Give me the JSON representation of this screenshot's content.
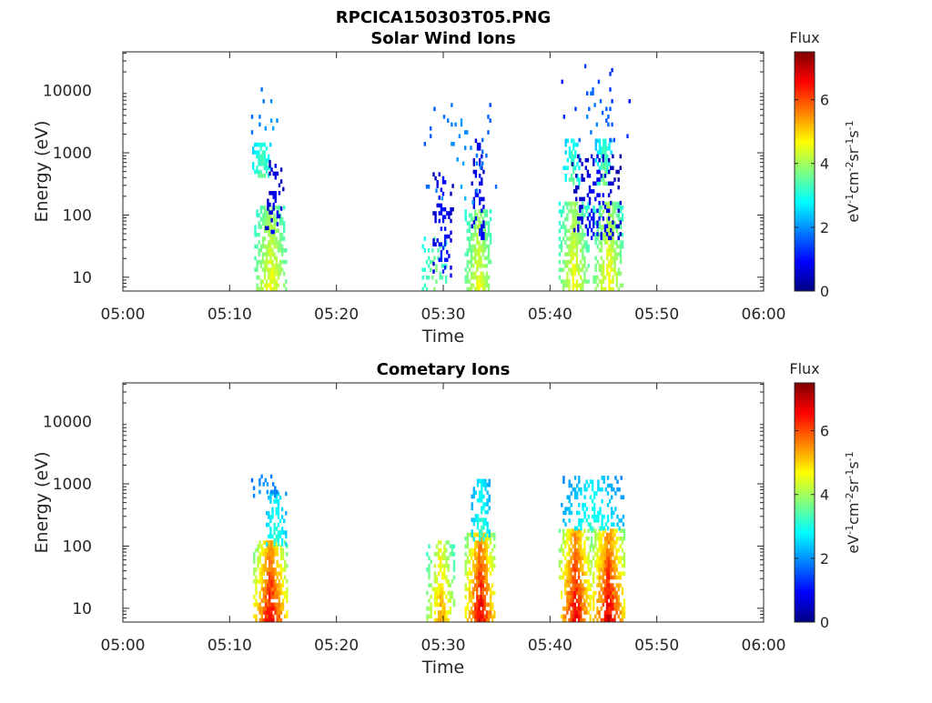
{
  "figure_title": "RPCICA150303T05.PNG",
  "colorbar": {
    "title": "Flux",
    "label_parts": [
      {
        "t": "eV",
        "sup": false
      },
      {
        "t": "-1",
        "sup": true
      },
      {
        "t": "cm",
        "sup": false
      },
      {
        "t": "-2",
        "sup": true
      },
      {
        "t": "sr",
        "sup": false
      },
      {
        "t": "-1",
        "sup": true
      },
      {
        "t": "s",
        "sup": false
      },
      {
        "t": "-1",
        "sup": true
      }
    ],
    "ticks": [
      "0",
      "2",
      "4",
      "6"
    ],
    "range": [
      0,
      7.5
    ],
    "colormap": "jet"
  },
  "chart_data": [
    {
      "type": "heatmap",
      "title": "Solar Wind Ions",
      "xlabel": "Time",
      "ylabel": "Energy (eV)",
      "x_ticks": [
        "05:00",
        "05:10",
        "05:20",
        "05:30",
        "05:40",
        "05:50",
        "06:00"
      ],
      "xlim_min": [
        0,
        60
      ],
      "y_scale": "log",
      "y_ticks": [
        "10",
        "100",
        "1000",
        "10000"
      ],
      "ylim": [
        6,
        42000
      ],
      "z_label": "Flux",
      "z_range": [
        0,
        7.5
      ],
      "clusters": [
        {
          "t0": 12.3,
          "t1": 15.3,
          "e_lo": 6,
          "e_hi": 130,
          "peak": 4.9,
          "min": 3.0,
          "density": 0.85
        },
        {
          "t0": 12.1,
          "t1": 13.8,
          "e_lo": 400,
          "e_hi": 1400,
          "peak": 3.8,
          "min": 2.4,
          "density": 0.85
        },
        {
          "t0": 13.3,
          "t1": 15.0,
          "e_lo": 50,
          "e_hi": 700,
          "peak": 1.2,
          "min": 0.2,
          "density": 0.35
        },
        {
          "t0": 12.0,
          "t1": 15.5,
          "e_lo": 1500,
          "e_hi": 15000,
          "peak": 2.3,
          "min": 1.5,
          "density": 0.05
        },
        {
          "t0": 28.0,
          "t1": 30.3,
          "e_lo": 6,
          "e_hi": 40,
          "peak": 4.0,
          "min": 2.8,
          "density": 0.25
        },
        {
          "t0": 29.0,
          "t1": 30.8,
          "e_lo": 10,
          "e_hi": 500,
          "peak": 1.5,
          "min": 0.3,
          "density": 0.3
        },
        {
          "t0": 32.0,
          "t1": 34.5,
          "e_lo": 6,
          "e_hi": 120,
          "peak": 4.8,
          "min": 3.0,
          "density": 0.75
        },
        {
          "t0": 32.6,
          "t1": 33.8,
          "e_lo": 40,
          "e_hi": 1500,
          "peak": 1.4,
          "min": 0.3,
          "density": 0.35
        },
        {
          "t0": 28.0,
          "t1": 35.0,
          "e_lo": 150,
          "e_hi": 6000,
          "peak": 2.4,
          "min": 1.4,
          "density": 0.05
        },
        {
          "t0": 40.8,
          "t1": 43.5,
          "e_lo": 6,
          "e_hi": 150,
          "peak": 4.9,
          "min": 3.0,
          "density": 0.75
        },
        {
          "t0": 44.0,
          "t1": 46.8,
          "e_lo": 6,
          "e_hi": 150,
          "peak": 5.0,
          "min": 3.0,
          "density": 0.8
        },
        {
          "t0": 41.2,
          "t1": 42.8,
          "e_lo": 300,
          "e_hi": 1500,
          "peak": 3.8,
          "min": 2.2,
          "density": 0.7
        },
        {
          "t0": 44.2,
          "t1": 45.8,
          "e_lo": 300,
          "e_hi": 1500,
          "peak": 4.0,
          "min": 2.3,
          "density": 0.75
        },
        {
          "t0": 42.0,
          "t1": 46.5,
          "e_lo": 40,
          "e_hi": 900,
          "peak": 1.3,
          "min": 0.2,
          "density": 0.3
        },
        {
          "t0": 40.5,
          "t1": 47.5,
          "e_lo": 1500,
          "e_hi": 40000,
          "peak": 2.3,
          "min": 0.6,
          "density": 0.05
        }
      ]
    },
    {
      "type": "heatmap",
      "title": "Cometary Ions",
      "xlabel": "Time",
      "ylabel": "Energy (eV)",
      "x_ticks": [
        "05:00",
        "05:10",
        "05:20",
        "05:30",
        "05:40",
        "05:50",
        "06:00"
      ],
      "xlim_min": [
        0,
        60
      ],
      "y_scale": "log",
      "y_ticks": [
        "10",
        "100",
        "1000",
        "10000"
      ],
      "ylim": [
        6,
        42000
      ],
      "z_label": "Flux",
      "z_range": [
        0,
        7.5
      ],
      "clusters": [
        {
          "t0": 12.2,
          "t1": 15.3,
          "e_lo": 6,
          "e_hi": 110,
          "peak": 7.2,
          "min": 3.5,
          "density": 0.95
        },
        {
          "t0": 13.2,
          "t1": 15.2,
          "e_lo": 100,
          "e_hi": 700,
          "peak": 3.5,
          "min": 2.0,
          "density": 0.55
        },
        {
          "t0": 12.0,
          "t1": 14.5,
          "e_lo": 600,
          "e_hi": 1400,
          "peak": 2.3,
          "min": 1.6,
          "density": 0.35
        },
        {
          "t0": 28.4,
          "t1": 31.0,
          "e_lo": 6,
          "e_hi": 120,
          "peak": 5.8,
          "min": 3.0,
          "density": 0.65
        },
        {
          "t0": 32.0,
          "t1": 34.8,
          "e_lo": 6,
          "e_hi": 150,
          "peak": 7.3,
          "min": 3.5,
          "density": 0.95
        },
        {
          "t0": 32.6,
          "t1": 34.3,
          "e_lo": 120,
          "e_hi": 1200,
          "peak": 3.5,
          "min": 2.0,
          "density": 0.55
        },
        {
          "t0": 40.8,
          "t1": 43.8,
          "e_lo": 6,
          "e_hi": 180,
          "peak": 7.3,
          "min": 3.5,
          "density": 0.95
        },
        {
          "t0": 43.8,
          "t1": 47.0,
          "e_lo": 6,
          "e_hi": 180,
          "peak": 7.3,
          "min": 3.5,
          "density": 0.95
        },
        {
          "t0": 41.0,
          "t1": 46.8,
          "e_lo": 180,
          "e_hi": 1300,
          "peak": 3.4,
          "min": 1.8,
          "density": 0.4
        }
      ]
    }
  ]
}
